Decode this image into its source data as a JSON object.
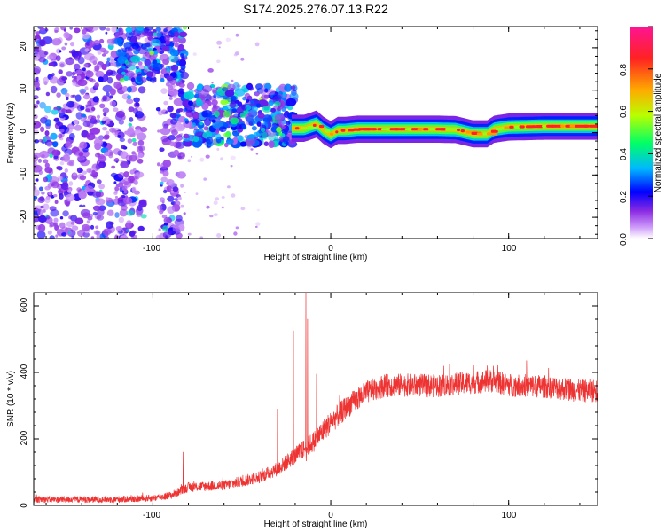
{
  "title": "S174.2025.276.07.13.R22",
  "top_panel": {
    "xlabel": "Height of straight line (km)",
    "ylabel": "Frequency (Hz)",
    "colorbar_label": "Normalized spectral amplitude",
    "x_ticks": [
      "-100",
      "0",
      "100"
    ],
    "y_ticks": [
      "20",
      "10",
      "0",
      "-10",
      "-20"
    ],
    "colorbar_ticks": [
      "0.0",
      "0.2",
      "0.4",
      "0.6",
      "0.8"
    ]
  },
  "bottom_panel": {
    "xlabel": "Height of straight line (km)",
    "ylabel": "SNR (10 * v/v)",
    "x_ticks": [
      "-100",
      "0",
      "100"
    ],
    "y_ticks": [
      "0",
      "200",
      "400",
      "600"
    ]
  },
  "colors": {
    "snr_line": "#ee3333",
    "axis": "#000000"
  },
  "chart_data": [
    {
      "type": "heatmap",
      "title": "S174.2025.276.07.13.R22",
      "xlabel": "Height of straight line (km)",
      "ylabel": "Frequency (Hz)",
      "xlim": [
        -167,
        150
      ],
      "ylim": [
        -25,
        25
      ],
      "zlim": [
        0,
        1
      ],
      "colorbar_label": "Normalized spectral amplitude",
      "colormap": [
        "#ffffff",
        "#a020f0",
        "#5500ff",
        "#0000ff",
        "#00ccff",
        "#00ff66",
        "#ccff00",
        "#ffaa00",
        "#ff2222",
        "#ff1493"
      ],
      "ridge": [
        [
          -22,
          1.0
        ],
        [
          -15,
          1.0
        ],
        [
          -8,
          2.0
        ],
        [
          -4,
          0.5
        ],
        [
          0,
          -0.5
        ],
        [
          4,
          0.5
        ],
        [
          8,
          0.5
        ],
        [
          15,
          0.8
        ],
        [
          30,
          0.8
        ],
        [
          50,
          0.8
        ],
        [
          60,
          0.8
        ],
        [
          70,
          0.7
        ],
        [
          80,
          -0.3
        ],
        [
          88,
          -0.3
        ],
        [
          92,
          0.8
        ],
        [
          100,
          1.3
        ],
        [
          120,
          1.5
        ],
        [
          150,
          1.5
        ]
      ],
      "scatter_regions": [
        {
          "x": [
            -167,
            -83
          ],
          "y": [
            -25,
            25
          ],
          "level": 0.15
        },
        {
          "x": [
            -82,
            -20
          ],
          "y": [
            -3,
            11
          ],
          "level": 0.25
        }
      ]
    },
    {
      "type": "line",
      "title": "",
      "xlabel": "Height of straight line (km)",
      "ylabel": "SNR (10 * v/v)",
      "xlim": [
        -167,
        150
      ],
      "ylim": [
        0,
        640
      ],
      "trend": {
        "x": [
          -167,
          -120,
          -100,
          -90,
          -80,
          -60,
          -40,
          -30,
          -20,
          -10,
          0,
          10,
          20,
          30,
          40,
          60,
          80,
          90,
          100,
          120,
          140,
          150
        ],
        "y": [
          18,
          18,
          22,
          30,
          55,
          60,
          85,
          110,
          150,
          190,
          250,
          300,
          340,
          360,
          362,
          360,
          370,
          375,
          362,
          358,
          345,
          345
        ]
      },
      "spikes": [
        [
          -83,
          160
        ],
        [
          -30,
          290
        ],
        [
          -21,
          525
        ],
        [
          -14,
          640
        ],
        [
          -13,
          560
        ],
        [
          -8,
          395
        ],
        [
          5,
          330
        ],
        [
          80,
          410
        ],
        [
          88,
          420
        ]
      ],
      "noise_amplitude": 30
    }
  ]
}
